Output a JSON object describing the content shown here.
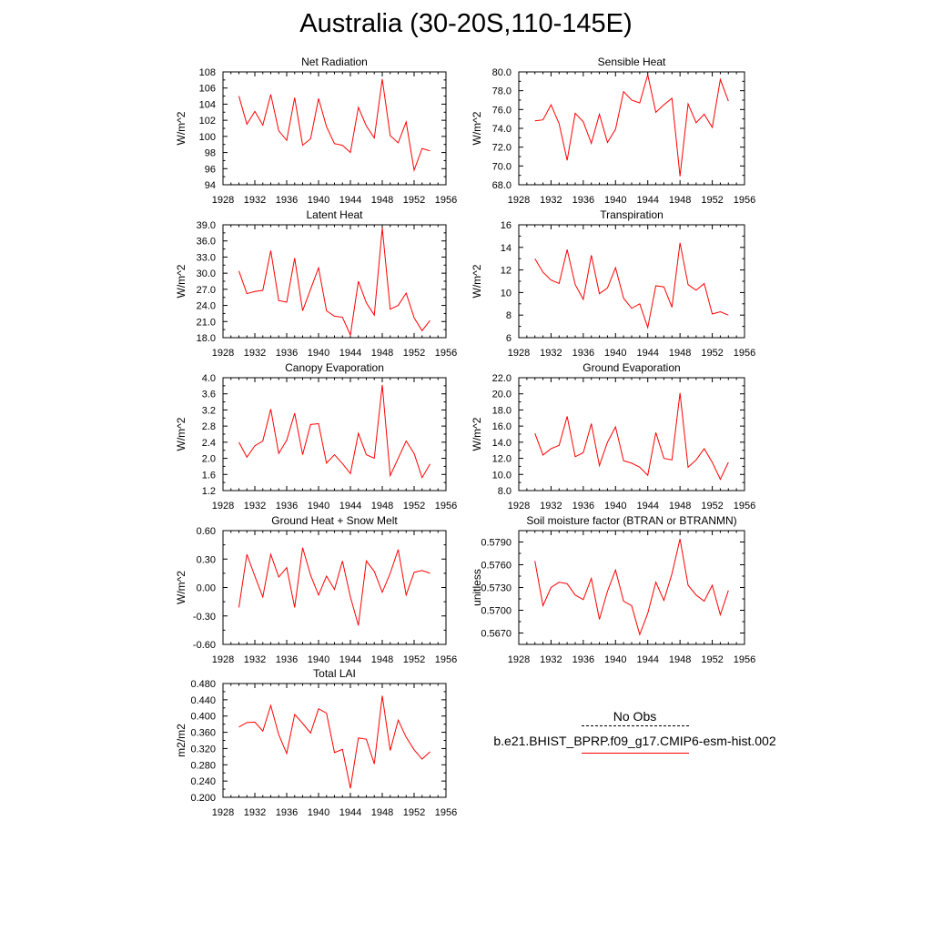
{
  "title": "Australia (30-20S,110-145E)",
  "colors": {
    "model": "#ff0000",
    "obs": "#000000"
  },
  "legend": {
    "obs_label": "No Obs",
    "model_label": "b.e21.BHIST_BPRP.f09_g17.CMIP6-esm-hist.002"
  },
  "chart_data": [
    {
      "type": "line",
      "title": "Net Radiation",
      "ylabel": "W/m^2",
      "xlim": [
        1928,
        1956
      ],
      "xticks": [
        1928,
        1932,
        1936,
        1940,
        1944,
        1948,
        1952,
        1956
      ],
      "xtick_labels": [
        "1928",
        "1932",
        "1936",
        "1940",
        "1944",
        "1948",
        "1952",
        "1956"
      ],
      "ylim": [
        94,
        108
      ],
      "yticks": [
        94,
        96,
        98,
        100,
        102,
        104,
        106,
        108
      ],
      "ytick_labels": [
        "94",
        "96",
        "98",
        "100",
        "102",
        "104",
        "106",
        "108"
      ],
      "x": [
        1930,
        1931,
        1932,
        1933,
        1934,
        1935,
        1936,
        1937,
        1938,
        1939,
        1940,
        1941,
        1942,
        1943,
        1944,
        1945,
        1946,
        1947,
        1948,
        1949,
        1950,
        1951,
        1952,
        1953,
        1954
      ],
      "series": [
        {
          "values": [
            105.0,
            101.5,
            103.1,
            101.4,
            105.2,
            100.7,
            99.5,
            104.8,
            98.9,
            99.7,
            104.7,
            101.2,
            99.1,
            98.9,
            98.0,
            103.6,
            101.3,
            99.8,
            107.1,
            100.1,
            99.2,
            101.8,
            95.8,
            98.5,
            98.2
          ]
        }
      ]
    },
    {
      "type": "line",
      "title": "Sensible Heat",
      "ylabel": "W/m^2",
      "xlim": [
        1928,
        1956
      ],
      "xticks": [
        1928,
        1932,
        1936,
        1940,
        1944,
        1948,
        1952,
        1956
      ],
      "xtick_labels": [
        "1928",
        "1932",
        "1936",
        "1940",
        "1944",
        "1948",
        "1952",
        "1956"
      ],
      "ylim": [
        68,
        80
      ],
      "yticks": [
        68,
        70,
        72,
        74,
        76,
        78,
        80
      ],
      "ytick_labels": [
        "68.0",
        "70.0",
        "72.0",
        "74.0",
        "76.0",
        "78.0",
        "80.0"
      ],
      "x": [
        1930,
        1931,
        1932,
        1933,
        1934,
        1935,
        1936,
        1937,
        1938,
        1939,
        1940,
        1941,
        1942,
        1943,
        1944,
        1945,
        1946,
        1947,
        1948,
        1949,
        1950,
        1951,
        1952,
        1953,
        1954
      ],
      "series": [
        {
          "values": [
            74.8,
            74.9,
            76.5,
            74.5,
            70.6,
            75.6,
            74.7,
            72.4,
            75.5,
            72.5,
            73.9,
            77.9,
            77.0,
            76.7,
            79.7,
            75.7,
            76.5,
            77.2,
            68.9,
            76.6,
            74.6,
            75.5,
            74.1,
            79.2,
            76.9
          ]
        }
      ]
    },
    {
      "type": "line",
      "title": "Latent Heat",
      "ylabel": "W/m^2",
      "xlim": [
        1928,
        1956
      ],
      "xticks": [
        1928,
        1932,
        1936,
        1940,
        1944,
        1948,
        1952,
        1956
      ],
      "xtick_labels": [
        "1928",
        "1932",
        "1936",
        "1940",
        "1944",
        "1948",
        "1952",
        "1956"
      ],
      "ylim": [
        18,
        39
      ],
      "yticks": [
        18,
        21,
        24,
        27,
        30,
        33,
        36,
        39
      ],
      "ytick_labels": [
        "18.0",
        "21.0",
        "24.0",
        "27.0",
        "30.0",
        "33.0",
        "36.0",
        "39.0"
      ],
      "x": [
        1930,
        1931,
        1932,
        1933,
        1934,
        1935,
        1936,
        1937,
        1938,
        1939,
        1940,
        1941,
        1942,
        1943,
        1944,
        1945,
        1946,
        1947,
        1948,
        1949,
        1950,
        1951,
        1952,
        1953,
        1954
      ],
      "series": [
        {
          "values": [
            30.4,
            26.2,
            26.6,
            26.8,
            34.2,
            24.9,
            24.6,
            32.8,
            23.0,
            27.0,
            31.0,
            23.0,
            22.0,
            21.8,
            18.5,
            28.5,
            24.5,
            22.2,
            38.4,
            23.3,
            24.0,
            26.3,
            21.7,
            19.3,
            21.2
          ]
        }
      ]
    },
    {
      "type": "line",
      "title": "Transpiration",
      "ylabel": "W/m^2",
      "xlim": [
        1928,
        1956
      ],
      "xticks": [
        1928,
        1932,
        1936,
        1940,
        1944,
        1948,
        1952,
        1956
      ],
      "xtick_labels": [
        "1928",
        "1932",
        "1936",
        "1940",
        "1944",
        "1948",
        "1952",
        "1956"
      ],
      "ylim": [
        6,
        16
      ],
      "yticks": [
        6,
        8,
        10,
        12,
        14,
        16
      ],
      "ytick_labels": [
        "6",
        "8",
        "10",
        "12",
        "14",
        "16"
      ],
      "x": [
        1930,
        1931,
        1932,
        1933,
        1934,
        1935,
        1936,
        1937,
        1938,
        1939,
        1940,
        1941,
        1942,
        1943,
        1944,
        1945,
        1946,
        1947,
        1948,
        1949,
        1950,
        1951,
        1952,
        1953,
        1954
      ],
      "series": [
        {
          "values": [
            13.0,
            11.8,
            11.1,
            10.8,
            13.8,
            10.7,
            9.4,
            13.3,
            9.9,
            10.4,
            12.2,
            9.5,
            8.6,
            9.0,
            6.9,
            10.6,
            10.5,
            8.7,
            14.4,
            10.7,
            10.2,
            10.8,
            8.1,
            8.3,
            8.0
          ]
        }
      ]
    },
    {
      "type": "line",
      "title": "Canopy Evaporation",
      "ylabel": "W/m^2",
      "xlim": [
        1928,
        1956
      ],
      "xticks": [
        1928,
        1932,
        1936,
        1940,
        1944,
        1948,
        1952,
        1956
      ],
      "xtick_labels": [
        "1928",
        "1932",
        "1936",
        "1940",
        "1944",
        "1948",
        "1952",
        "1956"
      ],
      "ylim": [
        1.2,
        4.0
      ],
      "yticks": [
        1.2,
        1.6,
        2.0,
        2.4,
        2.8,
        3.2,
        3.6,
        4.0
      ],
      "ytick_labels": [
        "1.2",
        "1.6",
        "2.0",
        "2.4",
        "2.8",
        "3.2",
        "3.6",
        "4.0"
      ],
      "x": [
        1930,
        1931,
        1932,
        1933,
        1934,
        1935,
        1936,
        1937,
        1938,
        1939,
        1940,
        1941,
        1942,
        1943,
        1944,
        1945,
        1946,
        1947,
        1948,
        1949,
        1950,
        1951,
        1952,
        1953,
        1954
      ],
      "series": [
        {
          "values": [
            2.4,
            2.03,
            2.31,
            2.43,
            3.22,
            2.12,
            2.45,
            3.12,
            2.09,
            2.84,
            2.86,
            1.88,
            2.09,
            1.87,
            1.62,
            2.62,
            2.09,
            2.0,
            3.82,
            1.57,
            2.0,
            2.43,
            2.12,
            1.52,
            1.86
          ]
        }
      ]
    },
    {
      "type": "line",
      "title": "Ground Evaporation",
      "ylabel": "W/m^2",
      "xlim": [
        1928,
        1956
      ],
      "xticks": [
        1928,
        1932,
        1936,
        1940,
        1944,
        1948,
        1952,
        1956
      ],
      "xtick_labels": [
        "1928",
        "1932",
        "1936",
        "1940",
        "1944",
        "1948",
        "1952",
        "1956"
      ],
      "ylim": [
        8,
        22
      ],
      "yticks": [
        8,
        10,
        12,
        14,
        16,
        18,
        20,
        22
      ],
      "ytick_labels": [
        "8.0",
        "10.0",
        "12.0",
        "14.0",
        "16.0",
        "18.0",
        "20.0",
        "22.0"
      ],
      "x": [
        1930,
        1931,
        1932,
        1933,
        1934,
        1935,
        1936,
        1937,
        1938,
        1939,
        1940,
        1941,
        1942,
        1943,
        1944,
        1945,
        1946,
        1947,
        1948,
        1949,
        1950,
        1951,
        1952,
        1953,
        1954
      ],
      "series": [
        {
          "values": [
            15.1,
            12.4,
            13.2,
            13.6,
            17.2,
            12.2,
            12.7,
            16.3,
            11.1,
            14.0,
            15.9,
            11.7,
            11.4,
            10.9,
            9.9,
            15.2,
            12.0,
            11.8,
            20.1,
            10.9,
            11.8,
            13.2,
            11.5,
            9.4,
            11.5
          ]
        }
      ]
    },
    {
      "type": "line",
      "title": "Ground Heat + Snow Melt",
      "ylabel": "W/m^2",
      "xlim": [
        1928,
        1956
      ],
      "xticks": [
        1928,
        1932,
        1936,
        1940,
        1944,
        1948,
        1952,
        1956
      ],
      "xtick_labels": [
        "1928",
        "1932",
        "1936",
        "1940",
        "1944",
        "1948",
        "1952",
        "1956"
      ],
      "ylim": [
        -0.6,
        0.6
      ],
      "yticks": [
        -0.6,
        -0.3,
        0.0,
        0.3,
        0.6
      ],
      "ytick_labels": [
        "-0.60",
        "-0.30",
        "0.00",
        "0.30",
        "0.60"
      ],
      "x": [
        1930,
        1931,
        1932,
        1933,
        1934,
        1935,
        1936,
        1937,
        1938,
        1939,
        1940,
        1941,
        1942,
        1943,
        1944,
        1945,
        1946,
        1947,
        1948,
        1949,
        1950,
        1951,
        1952,
        1953,
        1954
      ],
      "series": [
        {
          "values": [
            -0.21,
            0.35,
            0.12,
            -0.1,
            0.35,
            0.11,
            0.21,
            -0.21,
            0.42,
            0.13,
            -0.08,
            0.12,
            -0.02,
            0.28,
            -0.1,
            -0.4,
            0.28,
            0.17,
            -0.05,
            0.15,
            0.4,
            -0.08,
            0.16,
            0.18,
            0.15
          ]
        }
      ]
    },
    {
      "type": "line",
      "title": "Soil moisture factor (BTRAN or BTRANMN)",
      "ylabel": "unitless",
      "xlim": [
        1928,
        1956
      ],
      "xticks": [
        1928,
        1932,
        1936,
        1940,
        1944,
        1948,
        1952,
        1956
      ],
      "xtick_labels": [
        "1928",
        "1932",
        "1936",
        "1940",
        "1944",
        "1948",
        "1952",
        "1956"
      ],
      "ylim": [
        0.5655,
        0.5805
      ],
      "yticks": [
        0.567,
        0.57,
        0.573,
        0.576,
        0.579
      ],
      "ytick_labels": [
        "0.5670",
        "0.5700",
        "0.5730",
        "0.5760",
        "0.5790"
      ],
      "x": [
        1930,
        1931,
        1932,
        1933,
        1934,
        1935,
        1936,
        1937,
        1938,
        1939,
        1940,
        1941,
        1942,
        1943,
        1944,
        1945,
        1946,
        1947,
        1948,
        1949,
        1950,
        1951,
        1952,
        1953,
        1954
      ],
      "series": [
        {
          "values": [
            0.5765,
            0.5706,
            0.573,
            0.5737,
            0.5735,
            0.572,
            0.5714,
            0.5742,
            0.5688,
            0.5725,
            0.5753,
            0.5712,
            0.5706,
            0.5668,
            0.5696,
            0.5737,
            0.5713,
            0.5748,
            0.5794,
            0.5733,
            0.572,
            0.5712,
            0.5733,
            0.5694,
            0.5726
          ]
        }
      ]
    },
    {
      "type": "line",
      "title": "Total LAI",
      "ylabel": "m2/m2",
      "xlim": [
        1928,
        1956
      ],
      "xticks": [
        1928,
        1932,
        1936,
        1940,
        1944,
        1948,
        1952,
        1956
      ],
      "xtick_labels": [
        "1928",
        "1932",
        "1936",
        "1940",
        "1944",
        "1948",
        "1952",
        "1956"
      ],
      "ylim": [
        0.2,
        0.48
      ],
      "yticks": [
        0.2,
        0.24,
        0.28,
        0.32,
        0.36,
        0.4,
        0.44,
        0.48
      ],
      "ytick_labels": [
        "0.200",
        "0.240",
        "0.280",
        "0.320",
        "0.360",
        "0.400",
        "0.440",
        "0.480"
      ],
      "x": [
        1930,
        1931,
        1932,
        1933,
        1934,
        1935,
        1936,
        1937,
        1938,
        1939,
        1940,
        1941,
        1942,
        1943,
        1944,
        1945,
        1946,
        1947,
        1948,
        1949,
        1950,
        1951,
        1952,
        1953,
        1954
      ],
      "series": [
        {
          "values": [
            0.373,
            0.384,
            0.385,
            0.363,
            0.426,
            0.354,
            0.308,
            0.404,
            0.382,
            0.358,
            0.418,
            0.407,
            0.31,
            0.318,
            0.222,
            0.346,
            0.343,
            0.282,
            0.45,
            0.315,
            0.39,
            0.348,
            0.317,
            0.294,
            0.312
          ]
        }
      ]
    }
  ]
}
